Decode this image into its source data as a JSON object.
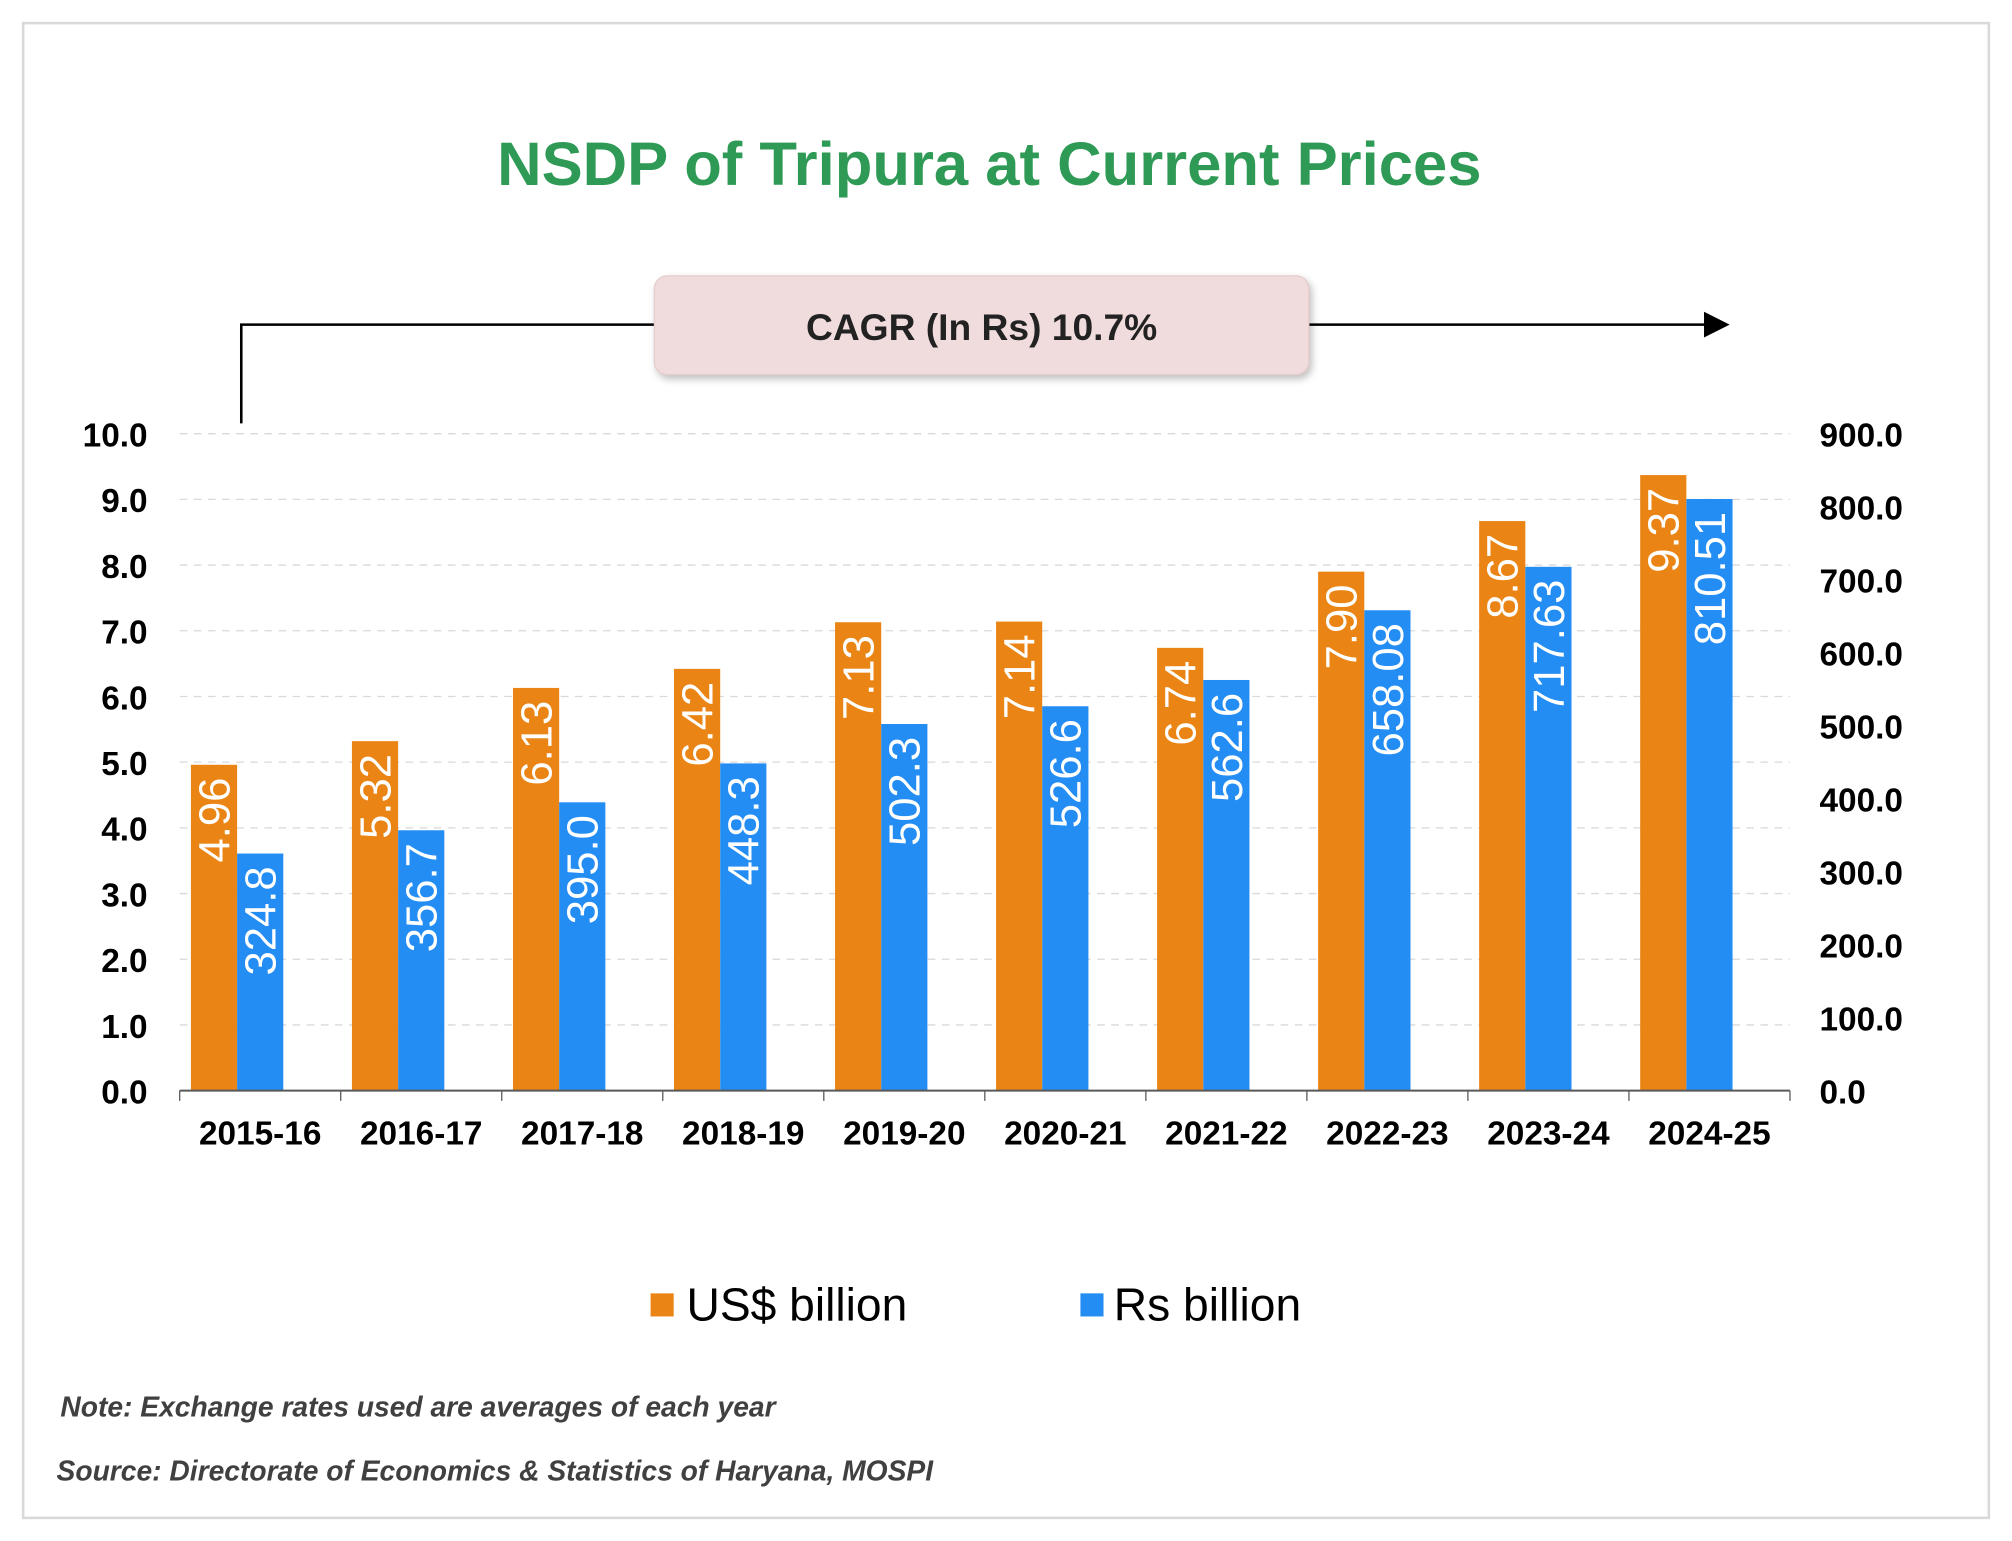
{
  "chart_data": {
    "type": "bar",
    "title": "NSDP of Tripura at Current Prices",
    "annotation": "CAGR (In Rs) 10.7%",
    "categories": [
      "2015-16",
      "2016-17",
      "2017-18",
      "2018-19",
      "2019-20",
      "2020-21",
      "2021-22",
      "2022-23",
      "2023-24",
      "2024-25"
    ],
    "series": [
      {
        "name": "US$ billion",
        "axis": "left",
        "color": "#ea8515",
        "values": [
          4.96,
          5.32,
          6.13,
          6.42,
          7.13,
          7.14,
          6.74,
          7.9,
          8.67,
          9.37
        ],
        "labels": [
          "4.96",
          "5.32",
          "6.13",
          "6.42",
          "7.13",
          "7.14",
          "6.74",
          "7.90",
          "8.67",
          "9.37"
        ]
      },
      {
        "name": "Rs billion",
        "axis": "right",
        "color": "#238df4",
        "values": [
          324.8,
          356.7,
          395.0,
          448.3,
          502.3,
          526.6,
          562.6,
          658.08,
          717.63,
          810.51
        ],
        "labels": [
          "324.8",
          "356.7",
          "395.0",
          "448.3",
          "502.3",
          "526.6",
          "562.6",
          "658.08",
          "717.63",
          "810.51"
        ]
      }
    ],
    "y_left": {
      "range": [
        0,
        10
      ],
      "ticks": [
        "0.0",
        "1.0",
        "2.0",
        "3.0",
        "4.0",
        "5.0",
        "6.0",
        "7.0",
        "8.0",
        "9.0",
        "10.0"
      ]
    },
    "y_right": {
      "range": [
        0,
        900
      ],
      "ticks": [
        "0.0",
        "100.0",
        "200.0",
        "300.0",
        "400.0",
        "500.0",
        "600.0",
        "700.0",
        "800.0",
        "900.0"
      ]
    },
    "grid": true,
    "legend": "bottom",
    "title_color": "#2e9a55"
  },
  "notes": {
    "note": "Note: Exchange rates used are averages of each year",
    "source": "Source: Directorate of Economics & Statistics of Haryana, MOSPI"
  }
}
